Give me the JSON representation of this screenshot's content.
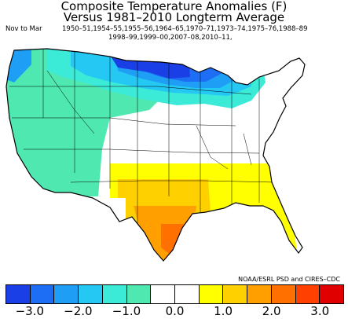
{
  "title_line1": "Composite Temperature Anomalies (F)",
  "title_line2": "Versus 1981–2010 Longterm Average",
  "season": "Nov to Mar",
  "years_line1": "1950–51,1954–55,1955–56,1964–65,1970–71,1973–74,1975–76,1988–89",
  "years_line2": "1998–99,1999–00,2007–08,2010–11,",
  "credit": "NOAA/ESRL PSD and CIRES–CDC",
  "legend": {
    "colors": [
      "#1a3fe6",
      "#1e6ef5",
      "#1e9ef5",
      "#24c8f2",
      "#3cead8",
      "#4ee8b0",
      "#ffffff",
      "#ffffff",
      "#ffff00",
      "#ffd000",
      "#ffa000",
      "#ff7000",
      "#ff4000",
      "#e00000"
    ],
    "ticks": [
      "−3.0",
      "−2.0",
      "−1.0",
      "0.0",
      "1.0",
      "2.0",
      "3.0"
    ],
    "tick_values": [
      -3.0,
      -2.0,
      -1.0,
      0.0,
      1.0,
      2.0,
      3.0
    ]
  },
  "map_regions": [
    {
      "name": "northern-plains-cold-core",
      "anomaly": -3.0,
      "color": "#1a3fe6"
    },
    {
      "name": "northern-tier-cold",
      "anomaly": -2.0,
      "color": "#1e9ef5"
    },
    {
      "name": "west-cool",
      "anomaly": -1.0,
      "color": "#4ee8b0"
    },
    {
      "name": "central-neutral",
      "anomaly": 0.0,
      "color": "#ffffff"
    },
    {
      "name": "south-warm",
      "anomaly": 1.0,
      "color": "#ffff00"
    },
    {
      "name": "texas-warm",
      "anomaly": 1.5,
      "color": "#ffd000"
    },
    {
      "name": "south-texas-warm",
      "anomaly": 2.0,
      "color": "#ffa000"
    },
    {
      "name": "texas-coast-warmest",
      "anomaly": 2.5,
      "color": "#ff7000"
    }
  ]
}
